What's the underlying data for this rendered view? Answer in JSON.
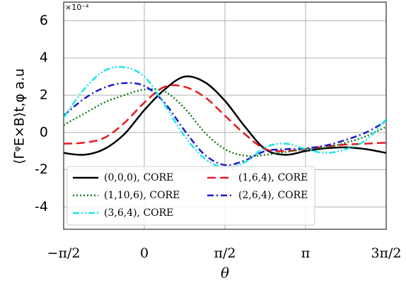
{
  "chart_data": {
    "type": "line",
    "multiplier": "×10⁻⁴",
    "x_label": "θ",
    "y_label": "⟨Γ̄ᵠE×B⟩t,φ a.u",
    "x": [
      -1.5708,
      -1.1781,
      -0.7854,
      -0.3927,
      0,
      0.3927,
      0.7854,
      1.1781,
      1.5708,
      1.9635,
      2.3562,
      2.7489,
      3.1416,
      3.5343,
      3.927,
      4.3197,
      4.7124
    ],
    "series": [
      {
        "name": "(0,0,0), CORE",
        "color": "#000000",
        "dash": "solid",
        "values": [
          -1.1,
          -1.2,
          -0.9,
          -0.1,
          1.2,
          2.3,
          3.0,
          2.7,
          1.7,
          0.3,
          -0.9,
          -1.2,
          -1.0,
          -0.85,
          -0.8,
          -0.9,
          -1.1
        ]
      },
      {
        "name": "(1,6,4), CORE",
        "color": "#e8191d",
        "dash": "dashed",
        "values": [
          -0.6,
          -0.55,
          -0.3,
          0.5,
          1.6,
          2.45,
          2.45,
          1.9,
          0.9,
          -0.1,
          -0.9,
          -1.0,
          -0.9,
          -0.75,
          -0.65,
          -0.6,
          -0.55
        ]
      },
      {
        "name": "(1,10,6), CORE",
        "color": "#1a7a1a",
        "dash": "dotted",
        "values": [
          0.4,
          1.0,
          1.6,
          2.0,
          2.3,
          2.2,
          1.3,
          0.0,
          -0.9,
          -1.25,
          -1.2,
          -1.05,
          -0.9,
          -0.8,
          -0.55,
          -0.2,
          0.3
        ]
      },
      {
        "name": "(2,6,4), CORE",
        "color": "#1a1acc",
        "dash": "dashdot",
        "values": [
          0.9,
          1.8,
          2.4,
          2.65,
          2.5,
          1.6,
          0.1,
          -1.2,
          -1.75,
          -1.5,
          -1.0,
          -0.9,
          -0.85,
          -0.7,
          -0.4,
          0.0,
          0.6
        ]
      },
      {
        "name": "(3,6,4), CORE",
        "color": "#19e6e6",
        "dash": "dashdotdot",
        "values": [
          0.8,
          2.3,
          3.3,
          3.5,
          3.0,
          1.5,
          -0.2,
          -1.4,
          -1.9,
          -1.6,
          -0.8,
          -0.6,
          -0.9,
          -1.1,
          -0.9,
          -0.4,
          0.7
        ]
      }
    ],
    "xlim": [
      -1.5708,
      4.7124
    ],
    "xticks": [
      {
        "value": -1.5708,
        "label": "−π/2"
      },
      {
        "value": 0,
        "label": "0"
      },
      {
        "value": 1.5708,
        "label": "π/2"
      },
      {
        "value": 3.1416,
        "label": "π"
      },
      {
        "value": 4.7124,
        "label": "3π/2"
      }
    ],
    "ylim": [
      -5.2,
      7
    ],
    "yticks": [
      {
        "value": -4,
        "label": "-4"
      },
      {
        "value": -2,
        "label": "-2"
      },
      0,
      2,
      4,
      6
    ],
    "grid": true,
    "legend": "lower left"
  }
}
